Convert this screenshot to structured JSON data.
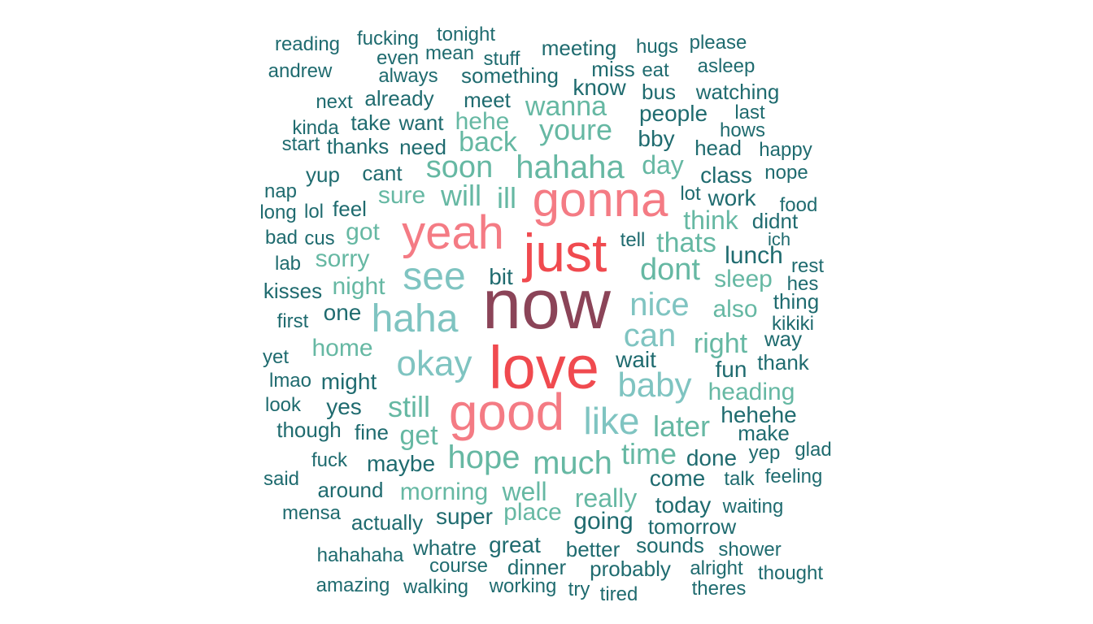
{
  "chart_data": {
    "type": "wordcloud",
    "color_scale": {
      "tier1": "#8b4458",
      "tier2": "#f04a4f",
      "tier3": "#f47b84",
      "tier4": "#7fc4c1",
      "tier5": "#66b8a3",
      "tier6": "#1f6b6f"
    },
    "words": [
      {
        "text": "now",
        "tier": 1
      },
      {
        "text": "love",
        "tier": 2
      },
      {
        "text": "just",
        "tier": 2
      },
      {
        "text": "good",
        "tier": 3
      },
      {
        "text": "yeah",
        "tier": 3
      },
      {
        "text": "gonna",
        "tier": 3
      },
      {
        "text": "haha",
        "tier": 4
      },
      {
        "text": "see",
        "tier": 4
      },
      {
        "text": "okay",
        "tier": 4
      },
      {
        "text": "like",
        "tier": 4
      },
      {
        "text": "baby",
        "tier": 4
      },
      {
        "text": "nice",
        "tier": 4
      },
      {
        "text": "can",
        "tier": 4
      },
      {
        "text": "hahaha",
        "tier": 5
      },
      {
        "text": "soon",
        "tier": 5
      },
      {
        "text": "much",
        "tier": 5
      },
      {
        "text": "hope",
        "tier": 5
      },
      {
        "text": "dont",
        "tier": 5
      },
      {
        "text": "youre",
        "tier": 5
      },
      {
        "text": "still",
        "tier": 5
      },
      {
        "text": "time",
        "tier": 5
      },
      {
        "text": "later",
        "tier": 5
      },
      {
        "text": "right",
        "tier": 5
      },
      {
        "text": "get",
        "tier": 5
      },
      {
        "text": "will",
        "tier": 5
      },
      {
        "text": "ill",
        "tier": 5
      },
      {
        "text": "back",
        "tier": 5
      },
      {
        "text": "thats",
        "tier": 5
      },
      {
        "text": "wanna",
        "tier": 5
      },
      {
        "text": "really",
        "tier": 5
      },
      {
        "text": "think",
        "tier": 5
      },
      {
        "text": "well",
        "tier": 5
      },
      {
        "text": "morning",
        "tier": 5
      },
      {
        "text": "place",
        "tier": 5
      },
      {
        "text": "hehe",
        "tier": 5
      },
      {
        "text": "sure",
        "tier": 5
      },
      {
        "text": "home",
        "tier": 5
      },
      {
        "text": "night",
        "tier": 5
      },
      {
        "text": "sorry",
        "tier": 5
      },
      {
        "text": "got",
        "tier": 5
      },
      {
        "text": "also",
        "tier": 5
      },
      {
        "text": "sleep",
        "tier": 5
      },
      {
        "text": "day",
        "tier": 5
      },
      {
        "text": "heading",
        "tier": 5
      },
      {
        "text": "bit",
        "tier": 6
      },
      {
        "text": "one",
        "tier": 6
      },
      {
        "text": "might",
        "tier": 6
      },
      {
        "text": "yes",
        "tier": 6
      },
      {
        "text": "fine",
        "tier": 6
      },
      {
        "text": "maybe",
        "tier": 6
      },
      {
        "text": "cant",
        "tier": 6
      },
      {
        "text": "feel",
        "tier": 6
      },
      {
        "text": "need",
        "tier": 6
      },
      {
        "text": "want",
        "tier": 6
      },
      {
        "text": "meet",
        "tier": 6
      },
      {
        "text": "already",
        "tier": 6
      },
      {
        "text": "something",
        "tier": 6
      },
      {
        "text": "always",
        "tier": 6
      },
      {
        "text": "stuff",
        "tier": 6
      },
      {
        "text": "mean",
        "tier": 6
      },
      {
        "text": "even",
        "tier": 6
      },
      {
        "text": "fucking",
        "tier": 6
      },
      {
        "text": "tonight",
        "tier": 6
      },
      {
        "text": "reading",
        "tier": 6
      },
      {
        "text": "andrew",
        "tier": 6
      },
      {
        "text": "next",
        "tier": 6
      },
      {
        "text": "take",
        "tier": 6
      },
      {
        "text": "kinda",
        "tier": 6
      },
      {
        "text": "start",
        "tier": 6
      },
      {
        "text": "thanks",
        "tier": 6
      },
      {
        "text": "yup",
        "tier": 6
      },
      {
        "text": "nap",
        "tier": 6
      },
      {
        "text": "long",
        "tier": 6
      },
      {
        "text": "lol",
        "tier": 6
      },
      {
        "text": "bad",
        "tier": 6
      },
      {
        "text": "cus",
        "tier": 6
      },
      {
        "text": "lab",
        "tier": 6
      },
      {
        "text": "kisses",
        "tier": 6
      },
      {
        "text": "first",
        "tier": 6
      },
      {
        "text": "yet",
        "tier": 6
      },
      {
        "text": "lmao",
        "tier": 6
      },
      {
        "text": "look",
        "tier": 6
      },
      {
        "text": "though",
        "tier": 6
      },
      {
        "text": "fuck",
        "tier": 6
      },
      {
        "text": "said",
        "tier": 6
      },
      {
        "text": "around",
        "tier": 6
      },
      {
        "text": "mensa",
        "tier": 6
      },
      {
        "text": "actually",
        "tier": 6
      },
      {
        "text": "super",
        "tier": 6
      },
      {
        "text": "hahahaha",
        "tier": 6
      },
      {
        "text": "whatre",
        "tier": 6
      },
      {
        "text": "great",
        "tier": 6
      },
      {
        "text": "course",
        "tier": 6
      },
      {
        "text": "amazing",
        "tier": 6
      },
      {
        "text": "walking",
        "tier": 6
      },
      {
        "text": "working",
        "tier": 6
      },
      {
        "text": "dinner",
        "tier": 6
      },
      {
        "text": "try",
        "tier": 6
      },
      {
        "text": "tired",
        "tier": 6
      },
      {
        "text": "probably",
        "tier": 6
      },
      {
        "text": "better",
        "tier": 6
      },
      {
        "text": "going",
        "tier": 6
      },
      {
        "text": "sounds",
        "tier": 6
      },
      {
        "text": "tomorrow",
        "tier": 6
      },
      {
        "text": "today",
        "tier": 6
      },
      {
        "text": "come",
        "tier": 6
      },
      {
        "text": "done",
        "tier": 6
      },
      {
        "text": "wait",
        "tier": 6
      },
      {
        "text": "fun",
        "tier": 6
      },
      {
        "text": "thank",
        "tier": 6
      },
      {
        "text": "way",
        "tier": 6
      },
      {
        "text": "kikiki",
        "tier": 6
      },
      {
        "text": "thing",
        "tier": 6
      },
      {
        "text": "hes",
        "tier": 6
      },
      {
        "text": "rest",
        "tier": 6
      },
      {
        "text": "lunch",
        "tier": 6
      },
      {
        "text": "ich",
        "tier": 6
      },
      {
        "text": "tell",
        "tier": 6
      },
      {
        "text": "didnt",
        "tier": 6
      },
      {
        "text": "food",
        "tier": 6
      },
      {
        "text": "work",
        "tier": 6
      },
      {
        "text": "lot",
        "tier": 6
      },
      {
        "text": "class",
        "tier": 6
      },
      {
        "text": "nope",
        "tier": 6
      },
      {
        "text": "head",
        "tier": 6
      },
      {
        "text": "happy",
        "tier": 6
      },
      {
        "text": "hows",
        "tier": 6
      },
      {
        "text": "bby",
        "tier": 6
      },
      {
        "text": "people",
        "tier": 6
      },
      {
        "text": "last",
        "tier": 6
      },
      {
        "text": "watching",
        "tier": 6
      },
      {
        "text": "bus",
        "tier": 6
      },
      {
        "text": "know",
        "tier": 6
      },
      {
        "text": "miss",
        "tier": 6
      },
      {
        "text": "eat",
        "tier": 6
      },
      {
        "text": "asleep",
        "tier": 6
      },
      {
        "text": "hugs",
        "tier": 6
      },
      {
        "text": "please",
        "tier": 6
      },
      {
        "text": "meeting",
        "tier": 6
      },
      {
        "text": "hehehe",
        "tier": 6
      },
      {
        "text": "make",
        "tier": 6
      },
      {
        "text": "yep",
        "tier": 6
      },
      {
        "text": "glad",
        "tier": 6
      },
      {
        "text": "talk",
        "tier": 6
      },
      {
        "text": "feeling",
        "tier": 6
      },
      {
        "text": "waiting",
        "tier": 6
      },
      {
        "text": "shower",
        "tier": 6
      },
      {
        "text": "alright",
        "tier": 6
      },
      {
        "text": "thought",
        "tier": 6
      },
      {
        "text": "theres",
        "tier": 6
      }
    ]
  }
}
